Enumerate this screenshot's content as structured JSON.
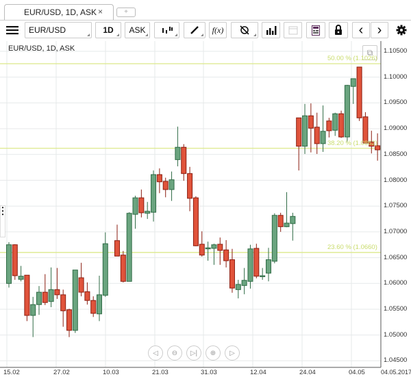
{
  "tabs": [
    {
      "label": "EUR/USD, 1D, ASK",
      "close": "×"
    }
  ],
  "tab_add": "+",
  "toolbar": {
    "symbol": "EUR/USD",
    "period": "1D",
    "side": "ASK",
    "icons": [
      "menu-icon",
      "candle-type-icon",
      "draw-icon",
      "indicator-fx-icon",
      "crosshair-icon",
      "volume-icon",
      "calendar-icon",
      "report-icon",
      "lock-icon",
      "prev-icon",
      "next-icon",
      "gear-icon"
    ],
    "fx": "f(x)",
    "prev": "‹",
    "next": "›"
  },
  "chart": {
    "title": "EUR/USD, 1D, ASK",
    "current_date": "04.05.2017",
    "colors": {
      "up": "#6aa47f",
      "up_border": "#2f6b45",
      "down": "#e0533b",
      "down_border": "#8b1d10",
      "fib": "#dbe98a"
    }
  },
  "chart_data": {
    "type": "candlestick",
    "ylim": [
      1.045,
      1.1065
    ],
    "y_ticks": [
      "1.10500",
      "1.10000",
      "1.09500",
      "1.09000",
      "1.08500",
      "1.08000",
      "1.07500",
      "1.07000",
      "1.06500",
      "1.06000",
      "1.05500",
      "1.05000",
      "1.04500"
    ],
    "x_ticks": [
      "15.02",
      "27.02",
      "10.03",
      "21.03",
      "31.03",
      "12.04",
      "24.04",
      "04.05"
    ],
    "grid": true,
    "fibonacci": [
      {
        "label": "50.00 % (1.1026)",
        "value": 1.1026
      },
      {
        "label": "38.20 % (1.0862)",
        "value": 1.0862
      },
      {
        "label": "23.60 % (1.0660)",
        "value": 1.066
      }
    ],
    "ohlc": [
      [
        1.06,
        1.068,
        1.0592,
        1.0675
      ],
      [
        1.0675,
        1.0676,
        1.0607,
        1.0615
      ],
      [
        1.0608,
        1.0634,
        1.0604,
        1.0614
      ],
      [
        1.0616,
        1.0616,
        1.0527,
        1.0538
      ],
      [
        1.0538,
        1.0574,
        1.0496,
        1.0559
      ],
      [
        1.0559,
        1.0595,
        1.0539,
        1.0583
      ],
      [
        1.0583,
        1.0618,
        1.0558,
        1.0563
      ],
      [
        1.0565,
        1.0631,
        1.0554,
        1.0588
      ],
      [
        1.0588,
        1.063,
        1.057,
        1.0578
      ],
      [
        1.0578,
        1.0588,
        1.0516,
        1.0547
      ],
      [
        1.0549,
        1.0551,
        1.0496,
        1.0509
      ],
      [
        1.0509,
        1.0626,
        1.0504,
        1.0626
      ],
      [
        1.0611,
        1.064,
        1.0575,
        1.0583
      ],
      [
        1.0584,
        1.0602,
        1.0559,
        1.0567
      ],
      [
        1.0567,
        1.0575,
        1.0535,
        1.0542
      ],
      [
        1.0541,
        1.0615,
        1.0527,
        1.0578
      ],
      [
        1.0577,
        1.0699,
        1.0574,
        1.0677
      ],
      [
        1.0683,
        1.0714,
        1.0653,
        1.0653
      ],
      [
        1.0655,
        1.0663,
        1.0602,
        1.0604
      ],
      [
        1.0604,
        1.0738,
        1.0604,
        1.0736
      ],
      [
        1.0734,
        1.077,
        1.0706,
        1.0766
      ],
      [
        1.0766,
        1.0782,
        1.0728,
        1.0737
      ],
      [
        1.0736,
        1.0758,
        1.0725,
        1.074
      ],
      [
        1.0738,
        1.0819,
        1.072,
        1.0811
      ],
      [
        1.0811,
        1.0823,
        1.0775,
        1.0797
      ],
      [
        1.0798,
        1.0805,
        1.0767,
        1.0782
      ],
      [
        1.0782,
        1.0817,
        1.076,
        1.0801
      ],
      [
        1.084,
        1.0904,
        1.0827,
        1.0864
      ],
      [
        1.0864,
        1.087,
        1.0799,
        1.0813
      ],
      [
        1.0813,
        1.0826,
        1.074,
        1.0765
      ],
      [
        1.0766,
        1.0769,
        1.0672,
        1.0673
      ],
      [
        1.0676,
        1.0701,
        1.0652,
        1.0655
      ],
      [
        1.0667,
        1.0681,
        1.0644,
        1.0669
      ],
      [
        1.0668,
        1.0677,
        1.0636,
        1.0675
      ],
      [
        1.0676,
        1.0689,
        1.0636,
        1.0664
      ],
      [
        1.0665,
        1.0684,
        1.0631,
        1.0644
      ],
      [
        1.0646,
        1.0667,
        1.0582,
        1.0591
      ],
      [
        1.0588,
        1.0607,
        1.0571,
        1.0598
      ],
      [
        1.0596,
        1.063,
        1.0579,
        1.0606
      ],
      [
        1.0604,
        1.0675,
        1.059,
        1.0667
      ],
      [
        1.0668,
        1.0677,
        1.061,
        1.0614
      ],
      [
        1.0614,
        1.063,
        1.0607,
        1.0615
      ],
      [
        1.062,
        1.0669,
        1.0604,
        1.0646
      ],
      [
        1.0643,
        1.0736,
        1.0639,
        1.0732
      ],
      [
        1.0732,
        1.0737,
        1.07,
        1.071
      ],
      [
        1.071,
        1.0777,
        1.0709,
        1.0717
      ],
      [
        1.0716,
        1.0737,
        1.0683,
        1.073
      ],
      [
        1.0921,
        1.0921,
        1.0819,
        1.0866
      ],
      [
        1.0866,
        1.0948,
        1.0851,
        1.0925
      ],
      [
        1.0925,
        1.0949,
        1.0854,
        1.0901
      ],
      [
        1.0903,
        1.0931,
        1.0851,
        1.0871
      ],
      [
        1.0871,
        1.0945,
        1.0855,
        1.0895
      ],
      [
        1.0915,
        1.0921,
        1.0883,
        1.0896
      ],
      [
        1.0897,
        1.0931,
        1.0886,
        1.0929
      ],
      [
        1.0929,
        1.0935,
        1.0882,
        1.0884
      ],
      [
        1.0884,
        1.0985,
        1.0874,
        1.0984
      ],
      [
        1.0982,
        1.0997,
        1.0948,
        1.0997
      ],
      [
        1.10195,
        1.10195,
        1.0915,
        1.0921
      ],
      [
        1.0923,
        1.0932,
        1.0872,
        1.0872
      ],
      [
        1.0874,
        1.0896,
        1.0852,
        1.0866
      ],
      [
        1.0867,
        1.0891,
        1.0838,
        1.0859
      ]
    ]
  }
}
